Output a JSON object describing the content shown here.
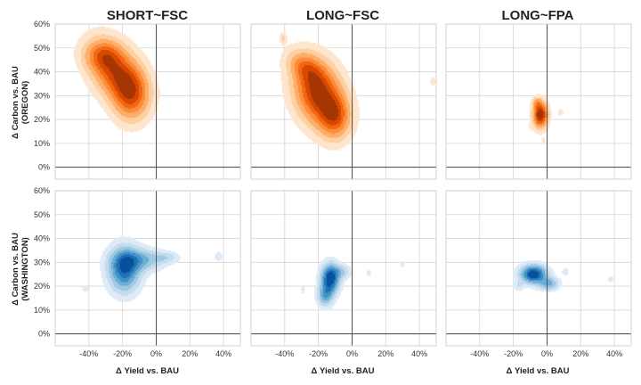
{
  "chart_data": {
    "type": "kde-contour",
    "panel_titles": [
      "SHORT~FSC",
      "LONG~FSC",
      "LONG~FPA"
    ],
    "row_labels": [
      {
        "line1": "Δ Carbon vs. BAU",
        "line2": "(OREGON)"
      },
      {
        "line1": "Δ Carbon vs. BAU",
        "line2": "(WASHINGTON)"
      }
    ],
    "xlabel": "Δ Yield vs. BAU",
    "x_ticks": [
      "-40%",
      "-20%",
      "0%",
      "20%",
      "40%"
    ],
    "y_ticks": [
      "0%",
      "10%",
      "20%",
      "30%",
      "40%",
      "50%",
      "60%"
    ],
    "xlim": [
      -60,
      50
    ],
    "ylim": [
      -5,
      60
    ],
    "colors": {
      "oregon": [
        "#fee6ce",
        "#fdd0a2",
        "#fdae6b",
        "#fd8d3c",
        "#f16913",
        "#d94801",
        "#a63603"
      ],
      "washington": [
        "#deebf7",
        "#c6dbef",
        "#9ecae1",
        "#6baed6",
        "#4292c6",
        "#2171b5",
        "#08519c"
      ]
    },
    "panels": [
      {
        "row": 0,
        "col": 0,
        "colormap": "oregon",
        "blobs": [
          {
            "x": -24,
            "y": 40,
            "sx": 11,
            "sy": 7,
            "rot": -30,
            "w": 1.0
          },
          {
            "x": -15,
            "y": 30,
            "sx": 7,
            "sy": 7,
            "rot": -45,
            "w": 0.75
          },
          {
            "x": -32,
            "y": 47,
            "sx": 7,
            "sy": 4,
            "rot": 0,
            "w": 0.45
          }
        ]
      },
      {
        "row": 0,
        "col": 1,
        "colormap": "oregon",
        "blobs": [
          {
            "x": -20,
            "y": 31,
            "sx": 10,
            "sy": 8,
            "rot": -40,
            "w": 1.0
          },
          {
            "x": -10,
            "y": 21,
            "sx": 6,
            "sy": 6,
            "rot": -35,
            "w": 0.6
          },
          {
            "x": -28,
            "y": 42,
            "sx": 7,
            "sy": 4,
            "rot": -20,
            "w": 0.4
          },
          {
            "x": -41,
            "y": 54,
            "sx": 1.3,
            "sy": 1.5,
            "rot": 0,
            "w": 0.2
          },
          {
            "x": 48,
            "y": 36,
            "sx": 1.2,
            "sy": 1.2,
            "rot": 0,
            "w": 0.15
          }
        ]
      },
      {
        "row": 0,
        "col": 2,
        "colormap": "oregon",
        "blobs": [
          {
            "x": -4,
            "y": 22,
            "sx": 2.8,
            "sy": 3.5,
            "rot": 0,
            "w": 1.0
          },
          {
            "x": -6,
            "y": 27,
            "sx": 1.8,
            "sy": 1.5,
            "rot": 0,
            "w": 0.25
          },
          {
            "x": 8,
            "y": 23,
            "sx": 1.3,
            "sy": 1.2,
            "rot": 0,
            "w": 0.12
          },
          {
            "x": -2,
            "y": 11,
            "sx": 0.8,
            "sy": 1.2,
            "rot": 0,
            "w": 0.1
          },
          {
            "x": -10,
            "y": 17,
            "sx": 0.8,
            "sy": 1.0,
            "rot": 0,
            "w": 0.08
          }
        ]
      },
      {
        "row": 1,
        "col": 0,
        "colormap": "washington",
        "blobs": [
          {
            "x": -19,
            "y": 27,
            "sx": 6,
            "sy": 6,
            "rot": 0,
            "w": 1.0
          },
          {
            "x": -10,
            "y": 31,
            "sx": 9,
            "sy": 3,
            "rot": 0,
            "w": 0.55
          },
          {
            "x": 6,
            "y": 32,
            "sx": 5,
            "sy": 1.5,
            "rot": 0,
            "w": 0.25
          },
          {
            "x": 37,
            "y": 32.5,
            "sx": 2,
            "sy": 1.4,
            "rot": 0,
            "w": 0.15
          },
          {
            "x": -42,
            "y": 19,
            "sx": 1.8,
            "sy": 1.2,
            "rot": 0,
            "w": 0.12
          }
        ]
      },
      {
        "row": 1,
        "col": 1,
        "colormap": "washington",
        "blobs": [
          {
            "x": -13,
            "y": 23,
            "sx": 3.5,
            "sy": 4,
            "rot": 0,
            "w": 1.0
          },
          {
            "x": -16,
            "y": 16,
            "sx": 3,
            "sy": 3,
            "rot": 0,
            "w": 0.5
          },
          {
            "x": -7,
            "y": 26,
            "sx": 4,
            "sy": 2,
            "rot": 0,
            "w": 0.3
          },
          {
            "x": 10,
            "y": 25.5,
            "sx": 1.3,
            "sy": 1.2,
            "rot": 0,
            "w": 0.1
          },
          {
            "x": 30,
            "y": 29,
            "sx": 1.2,
            "sy": 1.2,
            "rot": 0,
            "w": 0.1
          },
          {
            "x": -29,
            "y": 18.5,
            "sx": 1.2,
            "sy": 1.3,
            "rot": 0,
            "w": 0.1
          }
        ]
      },
      {
        "row": 1,
        "col": 2,
        "colormap": "washington",
        "blobs": [
          {
            "x": -8,
            "y": 25,
            "sx": 5,
            "sy": 2.5,
            "rot": 0,
            "w": 1.0
          },
          {
            "x": 1,
            "y": 21,
            "sx": 4,
            "sy": 1.8,
            "rot": 0,
            "w": 0.45
          },
          {
            "x": -17,
            "y": 20,
            "sx": 2,
            "sy": 1.5,
            "rot": 0,
            "w": 0.15
          },
          {
            "x": 11,
            "y": 26,
            "sx": 1.5,
            "sy": 1.2,
            "rot": 0,
            "w": 0.12
          },
          {
            "x": 38,
            "y": 23,
            "sx": 1.5,
            "sy": 1.0,
            "rot": 0,
            "w": 0.1
          }
        ]
      }
    ]
  }
}
